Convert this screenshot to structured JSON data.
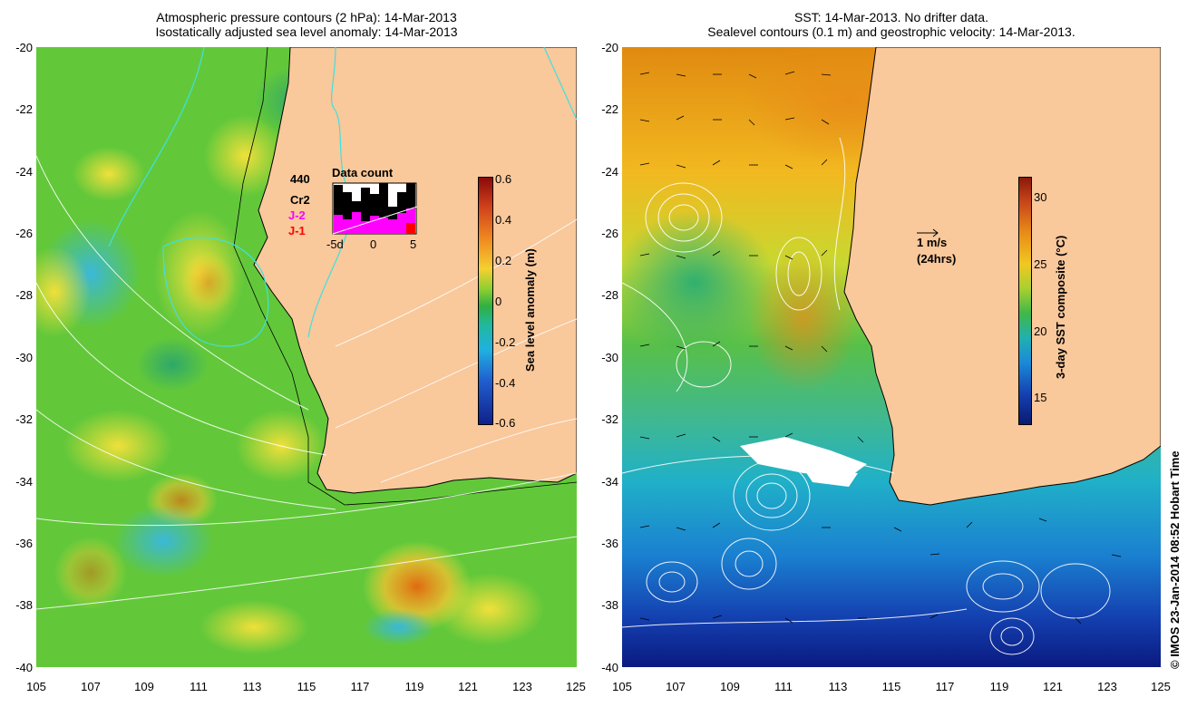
{
  "left_panel": {
    "title_line1": "Atmospheric pressure contours (2 hPa): 14-Mar-2013",
    "title_line2": "Isostatically adjusted sea level anomaly: 14-Mar-2013",
    "y_ticks": [
      "-20",
      "-22",
      "-24",
      "-26",
      "-28",
      "-30",
      "-32",
      "-34",
      "-36",
      "-38",
      "-40"
    ],
    "x_ticks": [
      "105",
      "107",
      "109",
      "111",
      "113",
      "115",
      "117",
      "119",
      "121",
      "123",
      "125"
    ],
    "colorbar_label": "Sea level anomaly (m)",
    "colorbar_ticks": [
      "0.6",
      "0.4",
      "0.2",
      "0",
      "-0.2",
      "-0.4",
      "-0.6"
    ],
    "data_count": {
      "title": "Data count",
      "max_label": "440",
      "series_labels": [
        "Cr2",
        "J-2",
        "J-1"
      ],
      "series_colors": [
        "#000000",
        "#ff00ff",
        "#ff0000"
      ],
      "x_labels": [
        "-5d",
        "0",
        "5"
      ]
    }
  },
  "right_panel": {
    "title_line1": "SST: 14-Mar-2013. No drifter data.",
    "title_line2": "Sealevel contours (0.1 m) and geostrophic velocity: 14-Mar-2013.",
    "y_ticks": [
      "-20",
      "-22",
      "-24",
      "-26",
      "-28",
      "-30",
      "-32",
      "-34",
      "-36",
      "-38",
      "-40"
    ],
    "x_ticks": [
      "105",
      "107",
      "109",
      "111",
      "113",
      "115",
      "117",
      "119",
      "121",
      "123",
      "125"
    ],
    "colorbar_label": "3-day SST composite (°C)",
    "colorbar_ticks": [
      "30",
      "25",
      "20",
      "15"
    ],
    "velocity_scale": "1 m/s",
    "velocity_scale_sub": "(24hrs)"
  },
  "credit": "© IMOS 23-Jan-2014 08:52 Hobart Time",
  "colors": {
    "land": "#f9c89b",
    "coast": "#000000",
    "contour": "#ffffff",
    "atm_contour": "#40e0e0"
  }
}
